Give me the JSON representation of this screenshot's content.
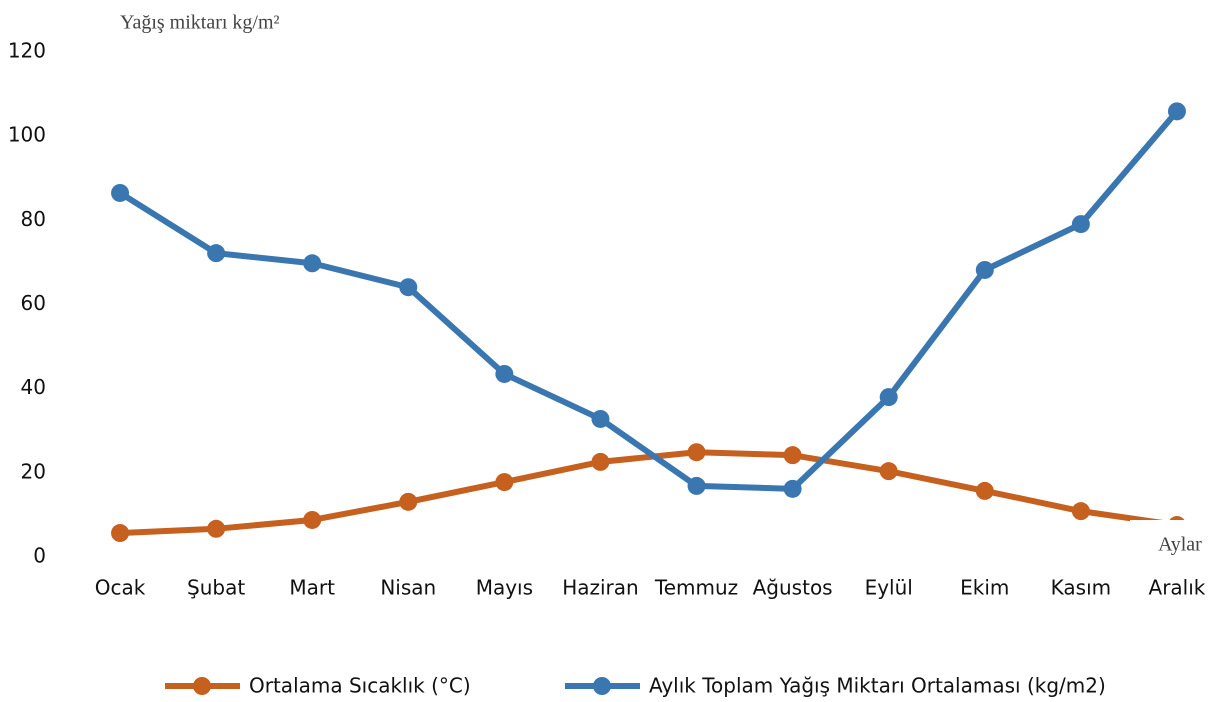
{
  "chart_data": {
    "type": "line",
    "y_label": "Yağış miktarı kg/m²",
    "x_label": "Aylar",
    "categories": [
      "Ocak",
      "Şubat",
      "Mart",
      "Nisan",
      "Mayıs",
      "Haziran",
      "Temmuz",
      "Ağustos",
      "Eylül",
      "Ekim",
      "Kasım",
      "Aralık"
    ],
    "series": [
      {
        "name": "Ortalama Sıcaklık (°C)",
        "color": "#c5601f",
        "values": [
          5.7,
          6.7,
          8.8,
          13.1,
          17.8,
          22.6,
          24.9,
          24.2,
          20.4,
          15.7,
          10.9,
          7.6
        ]
      },
      {
        "name": "Aylık Toplam Yağış Miktarı Ortalaması (kg/m2)",
        "color": "#3a77b0",
        "values": [
          86.5,
          72.2,
          69.8,
          64.1,
          43.5,
          32.8,
          16.9,
          16.2,
          38.0,
          68.2,
          79.1,
          105.9
        ]
      }
    ],
    "ylim": [
      0,
      120
    ],
    "yticks": [
      0,
      20,
      40,
      60,
      80,
      100,
      120
    ],
    "grid": false
  }
}
